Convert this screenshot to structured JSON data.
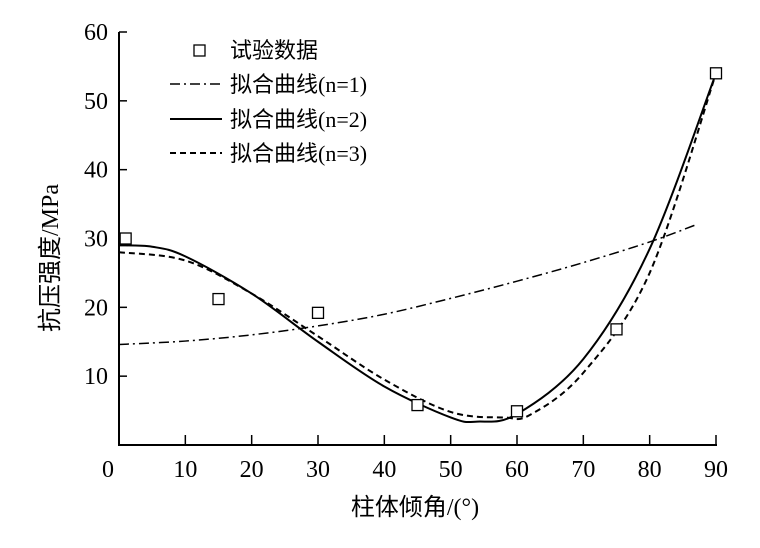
{
  "chart_data": {
    "type": "scatter",
    "title": "",
    "xlabel": "柱体倾角/(°)",
    "ylabel": "抗压强度/MPa",
    "xlim": [
      0,
      90
    ],
    "ylim": [
      0,
      60
    ],
    "xticks": [
      0,
      10,
      20,
      30,
      40,
      50,
      60,
      70,
      80,
      90
    ],
    "yticks": [
      10,
      20,
      30,
      40,
      50,
      60
    ],
    "grid": false,
    "legend_position": "top-left",
    "series": [
      {
        "name": "试验数据",
        "style": "square-marker",
        "x": [
          1,
          15,
          30,
          45,
          60,
          75,
          90
        ],
        "y": [
          30,
          21.2,
          19.2,
          5.8,
          4.9,
          16.8,
          54
        ]
      },
      {
        "name": "拟合曲线(n=1)",
        "style": "dash-dot",
        "n": "1",
        "x": [
          0,
          10,
          20,
          30,
          40,
          50,
          60,
          70,
          80,
          87
        ],
        "y": [
          14.6,
          15.1,
          16.0,
          17.3,
          19.0,
          21.3,
          23.8,
          26.5,
          29.5,
          32
        ]
      },
      {
        "name": "拟合曲线(n=2)",
        "style": "solid",
        "n": "2",
        "x": [
          0,
          5,
          10,
          20,
          30,
          40,
          50,
          54,
          60,
          70,
          80,
          90
        ],
        "y": [
          29,
          28.8,
          27.4,
          22,
          15,
          8.5,
          4.0,
          3.4,
          4.5,
          12.5,
          28.5,
          54
        ]
      },
      {
        "name": "拟合曲线(n=3)",
        "style": "dashed",
        "n": "3",
        "x": [
          0,
          10,
          20,
          30,
          40,
          50,
          58,
          62,
          70,
          80,
          90
        ],
        "y": [
          28,
          26.8,
          22,
          15.8,
          9.5,
          4.8,
          4.0,
          4.4,
          10.5,
          25,
          54
        ]
      }
    ]
  }
}
